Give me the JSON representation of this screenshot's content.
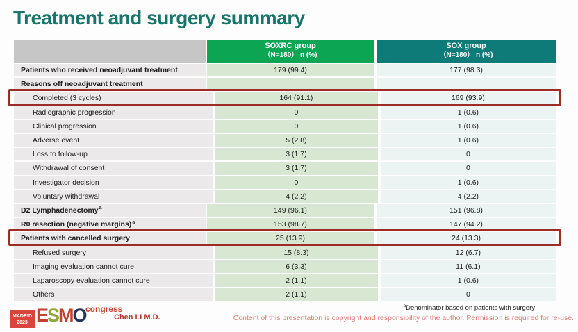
{
  "slide": {
    "title": "Treatment and surgery summary"
  },
  "table": {
    "header": {
      "groups": [
        {
          "name": "SOXRC group",
          "sub": "（N=180） n (%)"
        },
        {
          "name": "SOX group",
          "sub": "（N=180） n (%)"
        }
      ]
    },
    "rows": [
      {
        "label": "Patients who received neoadjuvant treatment",
        "sup": "",
        "soxrc": "179 (99.4)",
        "sox": "177 (98.3)",
        "style": "group",
        "highlight": false
      },
      {
        "label": "Reasons off neoadjuvant treatment",
        "sup": "",
        "soxrc": "",
        "sox": "",
        "style": "group",
        "highlight": false
      },
      {
        "label": "Completed (3 cycles)",
        "sup": "",
        "soxrc": "164 (91.1)",
        "sox": "169 (93.9)",
        "style": "sub",
        "highlight": true
      },
      {
        "label": "Radiographic progression",
        "sup": "",
        "soxrc": "0",
        "sox": "1 (0.6)",
        "style": "sub",
        "highlight": false
      },
      {
        "label": "Clinical progression",
        "sup": "",
        "soxrc": "0",
        "sox": "1 (0.6)",
        "style": "sub",
        "highlight": false
      },
      {
        "label": "Adverse event",
        "sup": "",
        "soxrc": "5 (2.8)",
        "sox": "1 (0.6)",
        "style": "sub",
        "highlight": false
      },
      {
        "label": "Loss to follow-up",
        "sup": "",
        "soxrc": "3 (1.7)",
        "sox": "0",
        "style": "sub",
        "highlight": false
      },
      {
        "label": "Withdrawal of consent",
        "sup": "",
        "soxrc": "3 (1.7)",
        "sox": "0",
        "style": "sub",
        "highlight": false
      },
      {
        "label": "Investigator decision",
        "sup": "",
        "soxrc": "0",
        "sox": "1 (0.6)",
        "style": "sub",
        "highlight": false
      },
      {
        "label": "Voluntary withdrawal",
        "sup": "",
        "soxrc": "4 (2.2)",
        "sox": "4 (2.2)",
        "style": "sub",
        "highlight": false
      },
      {
        "label": "D2 Lymphadenectomy",
        "sup": "a",
        "soxrc": "149 (96.1)",
        "sox": "151 (96.8)",
        "style": "group",
        "highlight": false
      },
      {
        "label": "R0 resection (negative margins)",
        "sup": "a",
        "soxrc": "153 (98.7)",
        "sox": "147 (94.2)",
        "style": "group",
        "highlight": false
      },
      {
        "label": "Patients with cancelled surgery",
        "sup": "",
        "soxrc": "25 (13.9)",
        "sox": "24 (13.3)",
        "style": "group",
        "highlight": true
      },
      {
        "label": "Refused surgery",
        "sup": "",
        "soxrc": "15 (8.3)",
        "sox": "12 (6.7)",
        "style": "sub",
        "highlight": false
      },
      {
        "label": "Imaging evaluation cannot cure",
        "sup": "",
        "soxrc": "6 (3.3)",
        "sox": "11 (6.1)",
        "style": "sub",
        "highlight": false
      },
      {
        "label": "Laparoscopy evaluation cannot cure",
        "sup": "",
        "soxrc": "2 (1.1)",
        "sox": "1 (0.6)",
        "style": "sub",
        "highlight": false
      },
      {
        "label": "Others",
        "sup": "",
        "soxrc": "2 (1.1)",
        "sox": "0",
        "style": "sub",
        "highlight": false
      }
    ]
  },
  "footer": {
    "logo": {
      "location": "MADRID",
      "year": "2023",
      "brand": "ESMO",
      "congress": "congress"
    },
    "author": "Chen LI M.D.",
    "footnote_sup": "a",
    "footnote": "Denominator based on patients with surgery",
    "copyright": "Content of this presentation is copyright and responsibility of the author. Permission is required for re-use."
  },
  "colors": {
    "title_teal": "#17756C",
    "header_green": "#0BA553",
    "header_teal": "#0F7B78",
    "header_gray": "#C6C6C6",
    "label_cell": "#EBE9EA",
    "soxrc_cell": "#D7E7D2",
    "sox_cell": "#EBF4F3",
    "highlight_border": "#9E2B25",
    "madrid_box": "#D9453C",
    "esmo_red": "#C5402E",
    "esmo_green": "#8FA73C",
    "esmo_navy": "#27325A",
    "author_red": "#B5342C",
    "copyright_pink": "#E07A74"
  }
}
